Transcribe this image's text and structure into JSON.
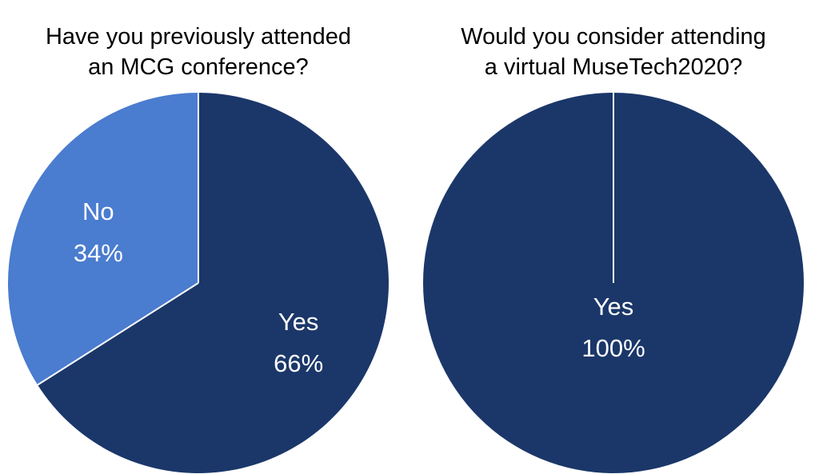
{
  "chart_data": [
    {
      "type": "pie",
      "title": [
        "Have you previously attended",
        "an MCG conference?"
      ],
      "categories": [
        "Yes",
        "No"
      ],
      "values": [
        66,
        34
      ],
      "value_labels": [
        "66%",
        "34%"
      ],
      "colors": [
        "#1b3769",
        "#4a7ccf"
      ]
    },
    {
      "type": "pie",
      "title": [
        "Would you consider attending",
        "a virtual MuseTech2020?"
      ],
      "categories": [
        "Yes"
      ],
      "values": [
        100
      ],
      "value_labels": [
        "100%"
      ],
      "colors": [
        "#1b3769"
      ]
    }
  ]
}
